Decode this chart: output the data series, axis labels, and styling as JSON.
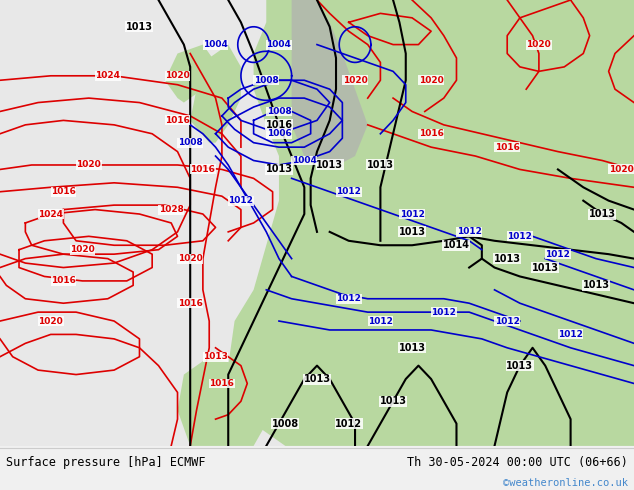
{
  "title_left": "Surface pressure [hPa] ECMWF",
  "title_right": "Th 30-05-2024 00:00 UTC (06+66)",
  "watermark": "©weatheronline.co.uk",
  "bg_ocean": "#e8e8e8",
  "bg_land": "#b8d8a0",
  "bg_land_grey": "#b0b0b0",
  "footer_bg": "#f0f0f0",
  "watermark_color": "#4488cc",
  "fig_width": 6.34,
  "fig_height": 4.9,
  "dpi": 100,
  "red_isobars": {
    "color": "#dd0000",
    "lw": 1.2
  },
  "black_isobars": {
    "color": "#000000",
    "lw": 1.5
  },
  "blue_isobars": {
    "color": "#0000cc",
    "lw": 1.2
  }
}
